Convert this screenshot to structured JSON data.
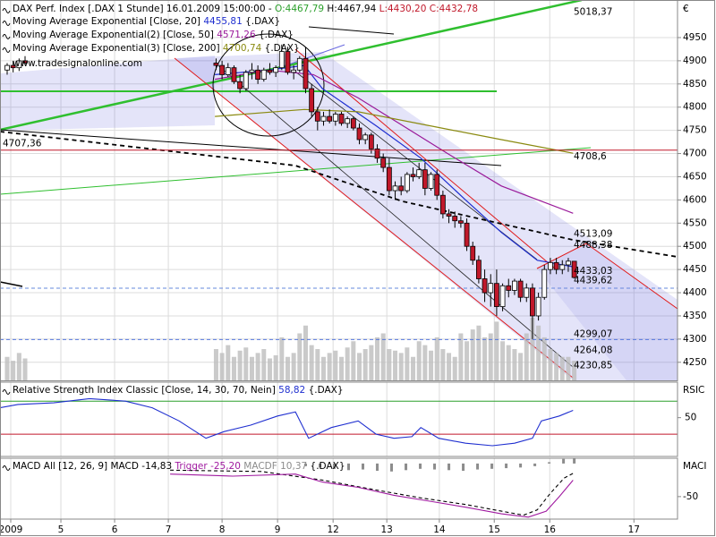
{
  "chart_data": [
    {
      "type": "candlestick",
      "title": "DAX Perf. Index [.DAX 1 Stunde] 16.01.2009 15:00:00 -",
      "ohlc_labels": [
        "O:4467,79",
        "H:4467,94",
        "L:4430,20",
        "C:4432,78"
      ],
      "source": "{.DAX}",
      "watermark": "www.tradesignalonline.com",
      "currency": "€",
      "up_color": "#ffffff",
      "down_color": "#c0182a",
      "xlim": [
        -1.2,
        112.3
      ],
      "xticks": [
        {
          "value": 0.6,
          "label": "2009"
        },
        {
          "value": 9,
          "label": "5"
        },
        {
          "value": 18,
          "label": "6"
        },
        {
          "value": 27,
          "label": "7"
        },
        {
          "value": 36,
          "label": "8"
        },
        {
          "value": 45.3,
          "label": "9"
        },
        {
          "value": 54.6,
          "label": "12"
        },
        {
          "value": 63.6,
          "label": "13"
        },
        {
          "value": 72.4,
          "label": "14"
        },
        {
          "value": 81.6,
          "label": "15"
        },
        {
          "value": 90.9,
          "label": "16"
        },
        {
          "value": 105,
          "label": "17"
        }
      ],
      "ylim": [
        4211,
        5031
      ],
      "yticks": [
        4250,
        4300,
        4350,
        4400,
        4450,
        4500,
        4550,
        4600,
        4650,
        4700,
        4750,
        4800,
        4850,
        4900,
        4950
      ],
      "grid": true,
      "x": [
        0,
        1,
        2,
        3,
        35,
        36,
        37,
        38,
        39,
        40,
        41,
        42,
        43,
        44,
        45,
        46,
        47,
        48,
        49,
        50,
        51,
        52,
        53,
        54,
        55,
        56,
        57,
        58,
        59,
        60,
        61,
        62,
        63,
        64,
        65,
        66,
        67,
        68,
        69,
        70,
        71,
        72,
        73,
        74,
        75,
        76,
        77,
        78,
        79,
        80,
        81,
        82,
        83,
        84,
        85,
        86,
        87,
        88,
        89,
        90,
        91,
        92,
        93,
        94,
        95
      ],
      "open": [
        4880,
        4890,
        4885,
        4900,
        4895,
        4890,
        4870,
        4885,
        4855,
        4840,
        4875,
        4880,
        4860,
        4880,
        4875,
        4885,
        4920,
        4875,
        4880,
        4905,
        4840,
        4790,
        4770,
        4780,
        4770,
        4785,
        4765,
        4775,
        4755,
        4730,
        4740,
        4710,
        4690,
        4670,
        4620,
        4630,
        4620,
        4655,
        4650,
        4665,
        4625,
        4655,
        4610,
        4570,
        4565,
        4555,
        4550,
        4500,
        4470,
        4430,
        4400,
        4420,
        4370,
        4415,
        4405,
        4425,
        4390,
        4410,
        4350,
        4390,
        4450,
        4465,
        4450,
        4460,
        4467.79
      ],
      "high": [
        4895,
        4900,
        4905,
        4910,
        4905,
        4900,
        4895,
        4890,
        4870,
        4880,
        4895,
        4890,
        4885,
        4895,
        4890,
        4935,
        4930,
        4890,
        4910,
        4930,
        4850,
        4800,
        4790,
        4795,
        4790,
        4790,
        4780,
        4780,
        4765,
        4745,
        4745,
        4720,
        4700,
        4690,
        4640,
        4650,
        4660,
        4670,
        4680,
        4680,
        4660,
        4665,
        4620,
        4580,
        4575,
        4565,
        4560,
        4510,
        4480,
        4450,
        4440,
        4450,
        4420,
        4430,
        4430,
        4430,
        4420,
        4420,
        4400,
        4460,
        4475,
        4475,
        4470,
        4475,
        4467.94
      ],
      "low": [
        4870,
        4875,
        4878,
        4890,
        4880,
        4860,
        4865,
        4850,
        4830,
        4835,
        4860,
        4850,
        4855,
        4870,
        4865,
        4880,
        4870,
        4860,
        4875,
        4830,
        4780,
        4750,
        4760,
        4765,
        4760,
        4760,
        4755,
        4750,
        4720,
        4720,
        4700,
        4680,
        4660,
        4610,
        4600,
        4610,
        4615,
        4640,
        4645,
        4610,
        4620,
        4600,
        4560,
        4550,
        4540,
        4540,
        4490,
        4460,
        4420,
        4380,
        4370,
        4350,
        4360,
        4390,
        4395,
        4380,
        4380,
        4300,
        4340,
        4385,
        4440,
        4440,
        4440,
        4445,
        4430.2
      ],
      "close": [
        4890,
        4885,
        4900,
        4895,
        4890,
        4870,
        4885,
        4855,
        4840,
        4875,
        4880,
        4860,
        4880,
        4875,
        4885,
        4920,
        4875,
        4880,
        4905,
        4840,
        4790,
        4770,
        4780,
        4770,
        4785,
        4765,
        4775,
        4755,
        4730,
        4740,
        4710,
        4690,
        4670,
        4620,
        4630,
        4620,
        4655,
        4650,
        4665,
        4625,
        4655,
        4610,
        4570,
        4565,
        4555,
        4550,
        4500,
        4470,
        4430,
        4400,
        4420,
        4370,
        4415,
        4405,
        4425,
        4390,
        4410,
        4350,
        4390,
        4450,
        4465,
        4450,
        4460,
        4468,
        4432.78
      ],
      "volume": [
        30,
        25,
        35,
        28,
        40,
        35,
        45,
        30,
        38,
        42,
        30,
        35,
        40,
        28,
        32,
        55,
        30,
        35,
        60,
        70,
        45,
        40,
        30,
        35,
        38,
        30,
        42,
        50,
        35,
        40,
        45,
        55,
        60,
        40,
        38,
        35,
        42,
        30,
        50,
        45,
        38,
        55,
        40,
        35,
        30,
        60,
        50,
        65,
        70,
        55,
        60,
        75,
        50,
        45,
        40,
        35,
        60,
        80,
        70,
        55,
        40,
        35,
        30,
        30,
        25
      ],
      "volume_color": "#bdbdbd",
      "series": [
        {
          "name": "Moving Average Exponential [Close, 20]",
          "last_label": "4455,81",
          "color": "#1f2fd0",
          "x": [
            34.8,
            43.8,
            49.8,
            52.8,
            61.8,
            69.3,
            76.8,
            82.8,
            88.8,
            94.8
          ],
          "values": [
            4870,
            4880,
            4890,
            4840,
            4760,
            4690,
            4600,
            4530,
            4470,
            4455.81
          ]
        },
        {
          "name": "Moving Average Exponential(2) [Close, 50]",
          "last_label": "4571,26",
          "color": "#9a1a9a",
          "x": [
            34.8,
            43.8,
            51.3,
            58.8,
            66.3,
            73.8,
            82.8,
            94.8
          ],
          "values": [
            4860,
            4880,
            4870,
            4820,
            4760,
            4700,
            4630,
            4571.26
          ]
        },
        {
          "name": "Moving Average Exponential(3) [Close, 200]",
          "last_label": "4700,74",
          "color": "#8a8a10",
          "x": [
            34.8,
            49.8,
            58.8,
            70.8,
            82.8,
            94.8
          ],
          "values": [
            4780,
            4795,
            4790,
            4760,
            4730,
            4700.74
          ]
        }
      ],
      "annotations": [
        {
          "value": 4707.36,
          "label": "4707,36",
          "color": "#c0182a",
          "line": "solid"
        },
        {
          "value": 4708.6,
          "label": "4708,6",
          "color": "#2ca02c"
        },
        {
          "value": 5018.37,
          "label": "5018,37",
          "color": "#2ca02c"
        },
        {
          "value": 4513.09,
          "label": "4513,09",
          "color": "#000000"
        },
        {
          "value": 4488.38,
          "label": "4488,38",
          "color": "#c0182a"
        },
        {
          "value": 4433.03,
          "label": "4433,03",
          "color": "#c0182a"
        },
        {
          "value": 4439.62,
          "label": "4439,62",
          "color": "#c0182a"
        },
        {
          "value": 4299.07,
          "label": "4299,07",
          "color": "#5577dd",
          "line": "dashed"
        },
        {
          "value": 4264.08,
          "label": "4264,08",
          "color": "#000000"
        },
        {
          "value": 4230.85,
          "label": "4230,85",
          "color": "#c0182a"
        }
      ]
    },
    {
      "type": "line",
      "title": "Relative Strength Index Classic [Close, 14, 30, 70, Nein]",
      "last_label": "58,82",
      "source": "{.DAX}",
      "axis_label": "RSIC",
      "color": "#1f2fd0",
      "ylim": [
        3,
        93
      ],
      "yticks": [
        50
      ],
      "levels": [
        {
          "value": 70,
          "color": "#2ca02c"
        },
        {
          "value": 30,
          "color": "#c0182a"
        }
      ],
      "x": [
        -1.2,
        1.8,
        7.8,
        13.8,
        19.8,
        24.3,
        28.8,
        33.3,
        36.3,
        40.8,
        45.3,
        48.3,
        50.5,
        54.3,
        58.8,
        61.8,
        64.8,
        67.8,
        69.3,
        72.3,
        76.8,
        81.3,
        85,
        88,
        89.5,
        92.5,
        94.8
      ],
      "values": [
        62,
        66,
        68,
        73,
        70,
        62,
        46,
        25,
        33,
        41,
        52,
        57,
        25,
        38,
        46,
        30,
        25,
        27,
        38,
        25,
        19,
        16,
        19,
        25,
        46,
        52,
        58.82
      ]
    },
    {
      "type": "macd",
      "title": "MACD All [12, 26, 9]",
      "source": "{.DAX}",
      "axis_label": "MACI",
      "ylim": [
        -84,
        8
      ],
      "yticks": [
        -50
      ],
      "series": [
        {
          "name": "MACD",
          "last_label": "-14,83",
          "color": "#000000",
          "dashed": true,
          "x": [
            27.3,
            42.6,
            52.8,
            61.8,
            69.3,
            76.8,
            82.8,
            86.5,
            88.8,
            91,
            93.3,
            94.8
          ],
          "values": [
            -10,
            -12,
            -25,
            -40,
            -52,
            -62,
            -72,
            -78,
            -70,
            -45,
            -22,
            -14.83
          ]
        },
        {
          "name": "Trigger",
          "last_label": "-25,20",
          "color": "#a01aa0",
          "x": [
            27.3,
            37.8,
            48.3,
            52.8,
            58.8,
            64.8,
            70.8,
            76.8,
            82.8,
            87.3,
            90.3,
            92.5,
            94.8
          ],
          "values": [
            -16,
            -19,
            -16,
            -28,
            -36,
            -48,
            -57,
            -66,
            -76,
            -81,
            -72,
            -50,
            -25.2
          ]
        },
        {
          "name": "MACDF",
          "last_label": "10,37",
          "color": "#8c8c8c",
          "bars": true,
          "x": [
            50,
            52.4,
            54.8,
            57.2,
            59.6,
            62,
            64.4,
            66.8,
            69.2,
            71.6,
            74,
            76.4,
            78.8,
            81.2,
            83.6,
            86,
            88.4,
            90.8,
            93.2,
            95
          ],
          "values": [
            -4,
            -6,
            -8,
            -10,
            -9,
            -11,
            -12,
            -10,
            -8,
            -9,
            -10,
            -11,
            -9,
            -8,
            -7,
            -6,
            -4,
            2,
            7,
            10.37
          ]
        }
      ]
    }
  ]
}
